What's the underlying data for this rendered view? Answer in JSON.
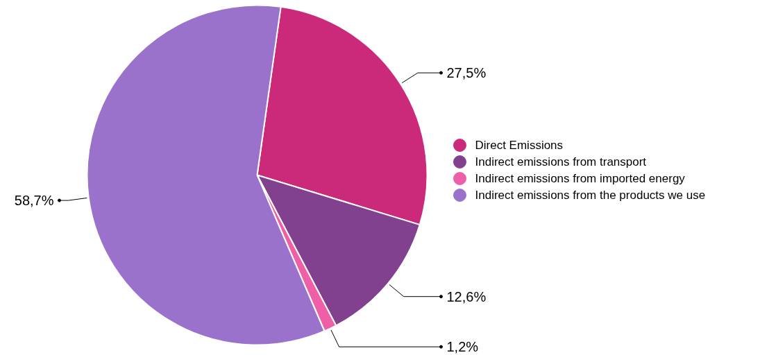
{
  "chart_data": {
    "type": "pie",
    "categories": [
      "Direct Emissions",
      "Indirect emissions from transport",
      "Indirect emissions from imported energy",
      "Indirect emissions from the products we use"
    ],
    "values": [
      27.5,
      12.6,
      1.2,
      58.7
    ],
    "value_labels": [
      "27,5%",
      "12,6%",
      "1,2%",
      "58,7%"
    ],
    "colors": [
      "#cb2a7b",
      "#82418f",
      "#ee5fa7",
      "#9b72cb"
    ],
    "legend": "right"
  }
}
